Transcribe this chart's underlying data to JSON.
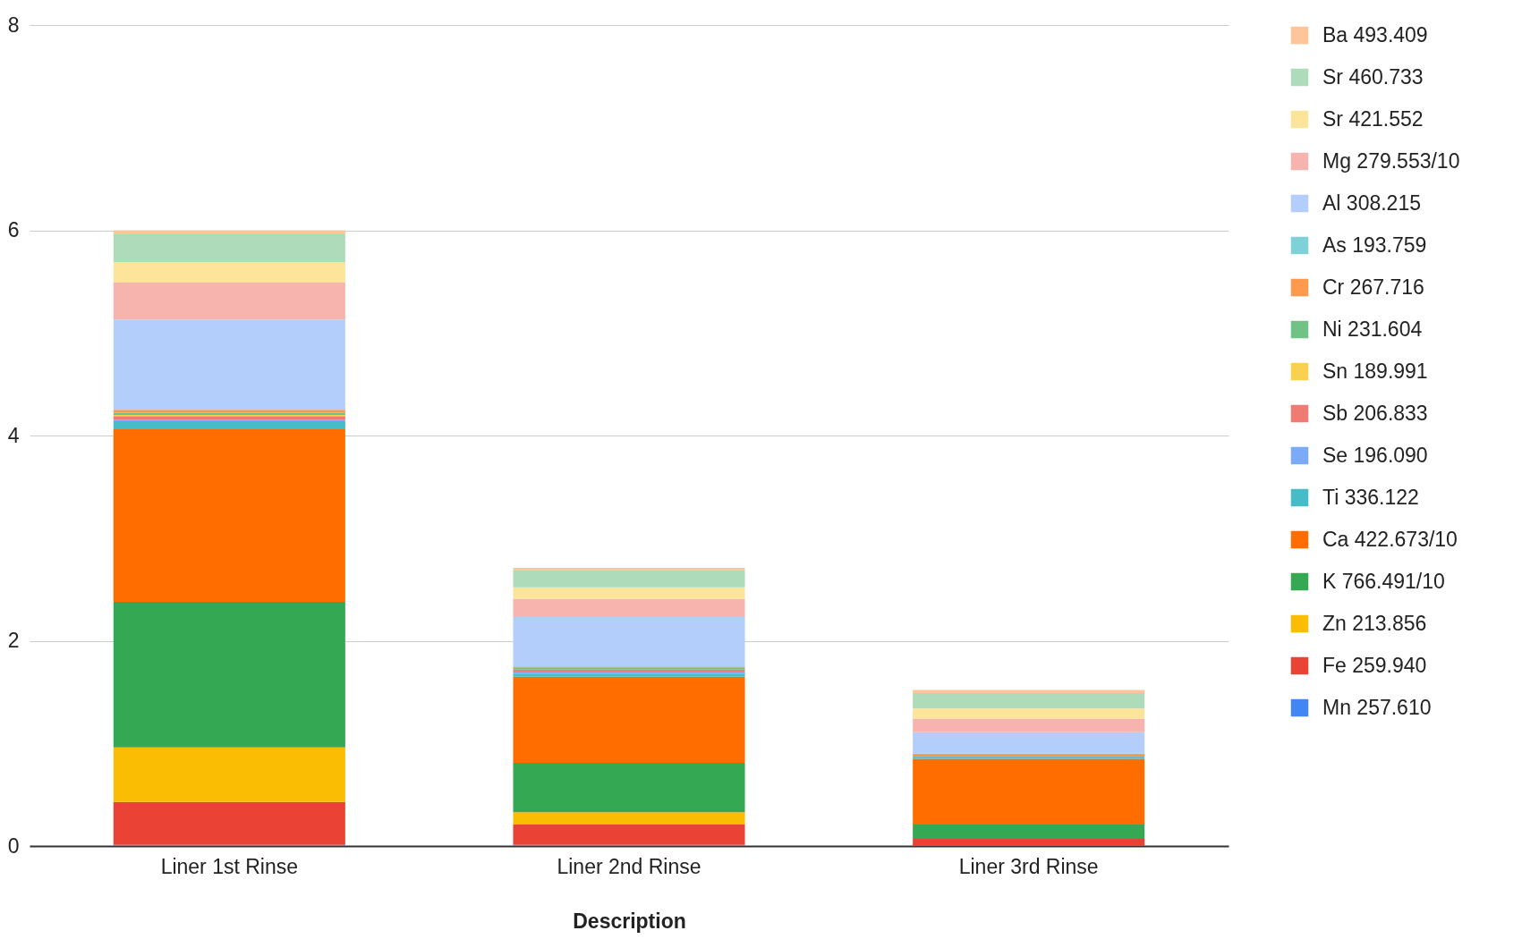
{
  "chart_data": {
    "type": "bar",
    "stacked": true,
    "xlabel": "Description",
    "categories": [
      "Liner 1st Rinse",
      "Liner 2nd Rinse",
      "Liner 3rd Rinse"
    ],
    "ylim": [
      0,
      8
    ],
    "yticks": [
      0,
      2,
      4,
      6,
      8
    ],
    "grid": "y",
    "legend": "right",
    "series": [
      {
        "name": "Mn 257.610",
        "color": "#4285f4",
        "values": [
          0.01,
          0.01,
          0
        ]
      },
      {
        "name": "Fe 259.940",
        "color": "#ea4335",
        "values": [
          0.42,
          0.2,
          0.07
        ]
      },
      {
        "name": "Zn 213.856",
        "color": "#fbbc04",
        "values": [
          0.53,
          0.12,
          0
        ]
      },
      {
        "name": "K 766.491/10",
        "color": "#34a853",
        "values": [
          1.42,
          0.48,
          0.14
        ]
      },
      {
        "name": "Ca 422.673/10",
        "color": "#ff6d01",
        "values": [
          1.68,
          0.84,
          0.64
        ]
      },
      {
        "name": "Ti 336.122",
        "color": "#46bdc6",
        "values": [
          0.08,
          0.03,
          0.02
        ]
      },
      {
        "name": "Se 196.090",
        "color": "#7baaf7",
        "values": [
          0.01,
          0.02,
          0.01
        ]
      },
      {
        "name": "Sb 206.833",
        "color": "#f07b72",
        "values": [
          0.04,
          0.02,
          0
        ]
      },
      {
        "name": "Sn 189.991",
        "color": "#fcd04f",
        "values": [
          0.01,
          0,
          0
        ]
      },
      {
        "name": "Ni 231.604",
        "color": "#71c287",
        "values": [
          0.02,
          0.02,
          0
        ]
      },
      {
        "name": "Cr 267.716",
        "color": "#ff994d",
        "values": [
          0.03,
          0.01,
          0.02
        ]
      },
      {
        "name": "As 193.759",
        "color": "#7ed1d7",
        "values": [
          0,
          0,
          0
        ]
      },
      {
        "name": "Al 308.215",
        "color": "#b3cefb",
        "values": [
          0.88,
          0.48,
          0.21
        ]
      },
      {
        "name": "Mg 279.553/10",
        "color": "#f7b4ae",
        "values": [
          0.36,
          0.18,
          0.13
        ]
      },
      {
        "name": "Sr 421.552",
        "color": "#fde49b",
        "values": [
          0.2,
          0.11,
          0.1
        ]
      },
      {
        "name": "Sr 460.733",
        "color": "#aedcba",
        "values": [
          0.27,
          0.17,
          0.15
        ]
      },
      {
        "name": "Ba 493.409",
        "color": "#ffc599",
        "values": [
          0.04,
          0.02,
          0.03
        ]
      }
    ]
  }
}
